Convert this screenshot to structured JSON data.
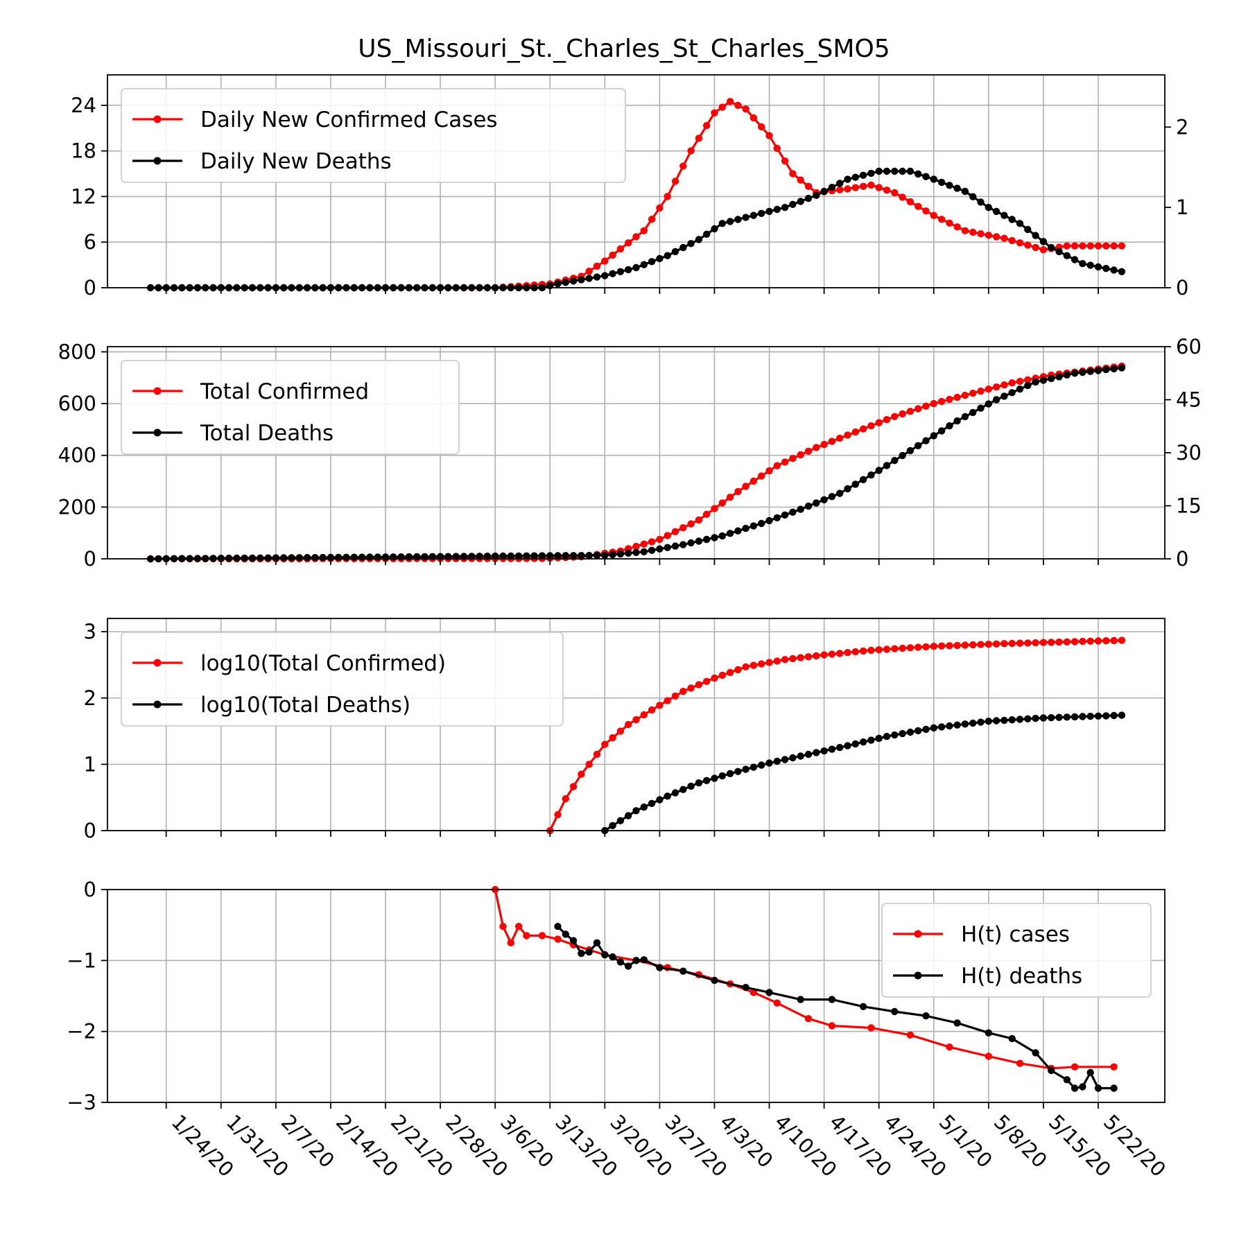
{
  "title": "US_Missouri_St._Charles_St_Charles_SMO5",
  "x_tick_labels": [
    "1/24/20",
    "1/31/20",
    "2/7/20",
    "2/14/20",
    "2/21/20",
    "2/28/20",
    "3/6/20",
    "3/13/20",
    "3/20/20",
    "3/27/20",
    "4/3/20",
    "4/10/20",
    "4/17/20",
    "4/24/20",
    "5/1/20",
    "5/8/20",
    "5/15/20",
    "5/22/20"
  ],
  "colors": {
    "cases": "#ff0000",
    "deaths": "#000000",
    "grid": "#b0b0b0"
  },
  "chart_data": [
    {
      "type": "line",
      "panel": "daily-new",
      "x_start": "2020-01-22",
      "x_end": "2020-05-25",
      "ylim": [
        0,
        28
      ],
      "yticks": [
        0,
        6,
        12,
        18,
        24
      ],
      "y2lim": [
        0,
        2.65
      ],
      "y2ticks": [
        0,
        1,
        2
      ],
      "legend_position": "upper-left",
      "grid": true,
      "series": [
        {
          "name": "Daily New Confirmed Cases",
          "color": "#ff0000",
          "axis": "left",
          "knots": [
            [
              "2020-01-22",
              0
            ],
            [
              "2020-03-06",
              0
            ],
            [
              "2020-03-13",
              0.5
            ],
            [
              "2020-03-17",
              1.5
            ],
            [
              "2020-03-20",
              3.5
            ],
            [
              "2020-03-25",
              7.5
            ],
            [
              "2020-03-28",
              12
            ],
            [
              "2020-03-31",
              18
            ],
            [
              "2020-04-03",
              23
            ],
            [
              "2020-04-05",
              24.5
            ],
            [
              "2020-04-07",
              23.5
            ],
            [
              "2020-04-10",
              20
            ],
            [
              "2020-04-13",
              15
            ],
            [
              "2020-04-16",
              12.5
            ],
            [
              "2020-04-20",
              13
            ],
            [
              "2020-04-23",
              13.5
            ],
            [
              "2020-04-26",
              12.5
            ],
            [
              "2020-05-01",
              9.5
            ],
            [
              "2020-05-05",
              7.5
            ],
            [
              "2020-05-10",
              6.5
            ],
            [
              "2020-05-15",
              5
            ],
            [
              "2020-05-18",
              5.5
            ],
            [
              "2020-05-25",
              5.5
            ]
          ]
        },
        {
          "name": "Daily New Deaths",
          "color": "#000000",
          "axis": "right",
          "knots": [
            [
              "2020-01-22",
              0
            ],
            [
              "2020-03-12",
              0
            ],
            [
              "2020-03-14",
              0.05
            ],
            [
              "2020-03-20",
              0.15
            ],
            [
              "2020-03-24",
              0.25
            ],
            [
              "2020-03-28",
              0.4
            ],
            [
              "2020-04-01",
              0.6
            ],
            [
              "2020-04-04",
              0.8
            ],
            [
              "2020-04-08",
              0.9
            ],
            [
              "2020-04-12",
              1.0
            ],
            [
              "2020-04-16",
              1.15
            ],
            [
              "2020-04-20",
              1.35
            ],
            [
              "2020-04-24",
              1.45
            ],
            [
              "2020-04-28",
              1.45
            ],
            [
              "2020-05-01",
              1.35
            ],
            [
              "2020-05-05",
              1.2
            ],
            [
              "2020-05-08",
              1.0
            ],
            [
              "2020-05-12",
              0.8
            ],
            [
              "2020-05-16",
              0.5
            ],
            [
              "2020-05-20",
              0.3
            ],
            [
              "2020-05-25",
              0.2
            ]
          ]
        }
      ]
    },
    {
      "type": "line",
      "panel": "totals",
      "x_start": "2020-01-22",
      "x_end": "2020-05-25",
      "ylim": [
        0,
        820
      ],
      "yticks": [
        0,
        200,
        400,
        600,
        800
      ],
      "y2lim": [
        0,
        60
      ],
      "y2ticks": [
        0,
        15,
        30,
        45,
        60
      ],
      "legend_position": "upper-left",
      "grid": true,
      "series": [
        {
          "name": "Total Confirmed",
          "color": "#ff0000",
          "axis": "left",
          "knots": [
            [
              "2020-01-22",
              0
            ],
            [
              "2020-03-12",
              1
            ],
            [
              "2020-03-17",
              8
            ],
            [
              "2020-03-22",
              30
            ],
            [
              "2020-03-27",
              75
            ],
            [
              "2020-04-01",
              150
            ],
            [
              "2020-04-06",
              260
            ],
            [
              "2020-04-11",
              360
            ],
            [
              "2020-04-16",
              430
            ],
            [
              "2020-04-21",
              490
            ],
            [
              "2020-04-26",
              550
            ],
            [
              "2020-05-01",
              600
            ],
            [
              "2020-05-06",
              640
            ],
            [
              "2020-05-11",
              680
            ],
            [
              "2020-05-16",
              710
            ],
            [
              "2020-05-25",
              745
            ]
          ]
        },
        {
          "name": "Total Deaths",
          "color": "#000000",
          "axis": "right",
          "knots": [
            [
              "2020-01-22",
              0
            ],
            [
              "2020-03-20",
              1
            ],
            [
              "2020-03-25",
              2
            ],
            [
              "2020-03-30",
              4
            ],
            [
              "2020-04-04",
              6.5
            ],
            [
              "2020-04-09",
              10
            ],
            [
              "2020-04-14",
              14
            ],
            [
              "2020-04-19",
              18.5
            ],
            [
              "2020-04-24",
              25
            ],
            [
              "2020-04-29",
              32
            ],
            [
              "2020-05-04",
              39
            ],
            [
              "2020-05-09",
              45
            ],
            [
              "2020-05-14",
              50
            ],
            [
              "2020-05-19",
              52.5
            ],
            [
              "2020-05-25",
              54
            ]
          ]
        }
      ]
    },
    {
      "type": "line",
      "panel": "log10",
      "x_start": "2020-01-22",
      "x_end": "2020-05-25",
      "ylim": [
        0,
        3.2
      ],
      "yticks": [
        0,
        1,
        2,
        3
      ],
      "legend_position": "upper-left",
      "grid": true,
      "series": [
        {
          "name": "log10(Total Confirmed)",
          "color": "#ff0000",
          "axis": "left",
          "knots": [
            [
              "2020-03-13",
              0
            ],
            [
              "2020-03-15",
              0.48
            ],
            [
              "2020-03-17",
              0.85
            ],
            [
              "2020-03-20",
              1.3
            ],
            [
              "2020-03-23",
              1.6
            ],
            [
              "2020-03-26",
              1.82
            ],
            [
              "2020-03-30",
              2.1
            ],
            [
              "2020-04-03",
              2.3
            ],
            [
              "2020-04-07",
              2.47
            ],
            [
              "2020-04-12",
              2.58
            ],
            [
              "2020-04-17",
              2.65
            ],
            [
              "2020-04-23",
              2.72
            ],
            [
              "2020-05-01",
              2.78
            ],
            [
              "2020-05-10",
              2.82
            ],
            [
              "2020-05-25",
              2.87
            ]
          ]
        },
        {
          "name": "log10(Total Deaths)",
          "color": "#000000",
          "axis": "left",
          "knots": [
            [
              "2020-03-20",
              0
            ],
            [
              "2020-03-24",
              0.3
            ],
            [
              "2020-03-28",
              0.52
            ],
            [
              "2020-04-01",
              0.72
            ],
            [
              "2020-04-05",
              0.86
            ],
            [
              "2020-04-10",
              1.02
            ],
            [
              "2020-04-15",
              1.15
            ],
            [
              "2020-04-20",
              1.28
            ],
            [
              "2020-04-25",
              1.42
            ],
            [
              "2020-05-01",
              1.55
            ],
            [
              "2020-05-08",
              1.65
            ],
            [
              "2020-05-15",
              1.7
            ],
            [
              "2020-05-25",
              1.74
            ]
          ]
        }
      ]
    },
    {
      "type": "line",
      "panel": "hazard",
      "x_start": "2020-01-22",
      "x_end": "2020-05-25",
      "ylim": [
        -3,
        0
      ],
      "yticks": [
        -3,
        -2,
        -1,
        0
      ],
      "legend_position": "upper-right",
      "grid": true,
      "series": [
        {
          "name": "H(t) cases",
          "color": "#ff0000",
          "axis": "left",
          "points": [
            [
              "2020-03-06",
              0
            ],
            [
              "2020-03-07",
              -0.52
            ],
            [
              "2020-03-08",
              -0.75
            ],
            [
              "2020-03-09",
              -0.52
            ],
            [
              "2020-03-10",
              -0.65
            ],
            [
              "2020-03-12",
              -0.65
            ],
            [
              "2020-03-14",
              -0.7
            ],
            [
              "2020-03-16",
              -0.78
            ],
            [
              "2020-03-18",
              -0.85
            ],
            [
              "2020-03-20",
              -0.92
            ],
            [
              "2020-03-24",
              -1.0
            ],
            [
              "2020-03-28",
              -1.1
            ],
            [
              "2020-04-01",
              -1.2
            ],
            [
              "2020-04-05",
              -1.33
            ],
            [
              "2020-04-08",
              -1.45
            ],
            [
              "2020-04-11",
              -1.6
            ],
            [
              "2020-04-15",
              -1.82
            ],
            [
              "2020-04-18",
              -1.92
            ],
            [
              "2020-04-23",
              -1.95
            ],
            [
              "2020-04-28",
              -2.05
            ],
            [
              "2020-05-03",
              -2.22
            ],
            [
              "2020-05-08",
              -2.35
            ],
            [
              "2020-05-12",
              -2.45
            ],
            [
              "2020-05-16",
              -2.52
            ],
            [
              "2020-05-19",
              -2.5
            ],
            [
              "2020-05-24",
              -2.5
            ]
          ]
        },
        {
          "name": "H(t) deaths",
          "color": "#000000",
          "axis": "left",
          "points": [
            [
              "2020-03-14",
              -0.52
            ],
            [
              "2020-03-15",
              -0.63
            ],
            [
              "2020-03-16",
              -0.72
            ],
            [
              "2020-03-17",
              -0.9
            ],
            [
              "2020-03-18",
              -0.88
            ],
            [
              "2020-03-19",
              -0.75
            ],
            [
              "2020-03-20",
              -0.92
            ],
            [
              "2020-03-21",
              -0.95
            ],
            [
              "2020-03-22",
              -1.02
            ],
            [
              "2020-03-23",
              -1.08
            ],
            [
              "2020-03-24",
              -1.0
            ],
            [
              "2020-03-25",
              -0.99
            ],
            [
              "2020-03-27",
              -1.1
            ],
            [
              "2020-03-30",
              -1.15
            ],
            [
              "2020-04-03",
              -1.28
            ],
            [
              "2020-04-07",
              -1.38
            ],
            [
              "2020-04-10",
              -1.45
            ],
            [
              "2020-04-14",
              -1.55
            ],
            [
              "2020-04-18",
              -1.55
            ],
            [
              "2020-04-22",
              -1.65
            ],
            [
              "2020-04-26",
              -1.72
            ],
            [
              "2020-04-30",
              -1.78
            ],
            [
              "2020-05-04",
              -1.88
            ],
            [
              "2020-05-08",
              -2.02
            ],
            [
              "2020-05-11",
              -2.1
            ],
            [
              "2020-05-14",
              -2.3
            ],
            [
              "2020-05-16",
              -2.55
            ],
            [
              "2020-05-18",
              -2.68
            ],
            [
              "2020-05-19",
              -2.8
            ],
            [
              "2020-05-20",
              -2.78
            ],
            [
              "2020-05-21",
              -2.58
            ],
            [
              "2020-05-22",
              -2.8
            ],
            [
              "2020-05-24",
              -2.8
            ]
          ]
        }
      ]
    }
  ]
}
